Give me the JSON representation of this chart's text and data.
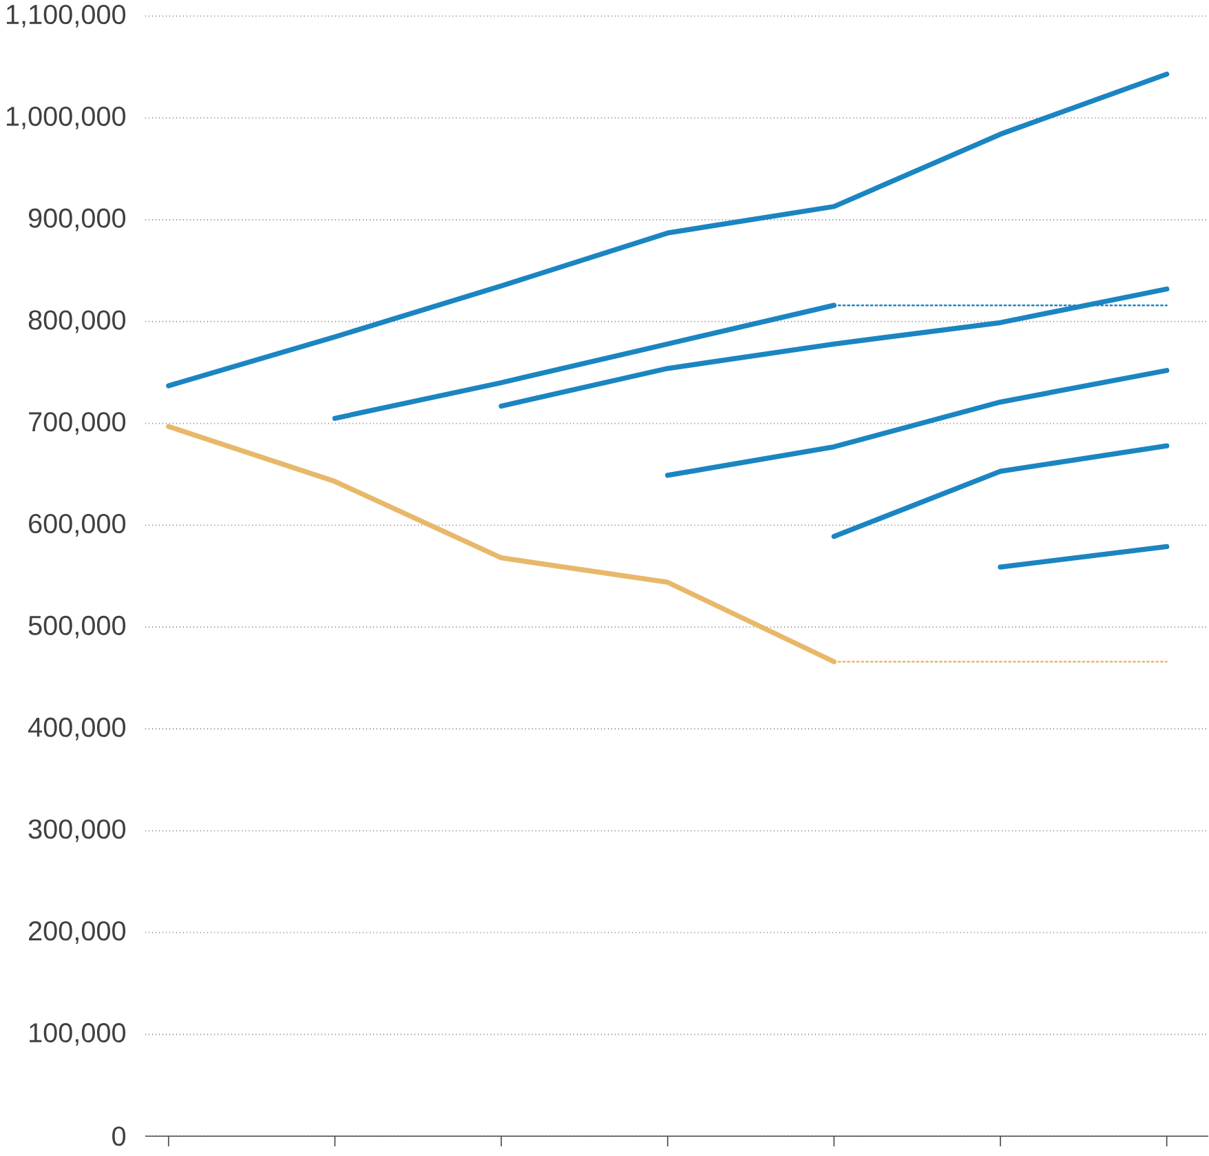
{
  "chart_data": {
    "type": "line",
    "categories": [
      null,
      null,
      null,
      null,
      null,
      null,
      null
    ],
    "ylim": [
      0,
      1100000
    ],
    "yticks": [
      {
        "value": 0,
        "label": "0"
      },
      {
        "value": 100000,
        "label": "100,000"
      },
      {
        "value": 200000,
        "label": "200,000"
      },
      {
        "value": 300000,
        "label": "300,000"
      },
      {
        "value": 400000,
        "label": "400,000"
      },
      {
        "value": 500000,
        "label": "500,000"
      },
      {
        "value": 600000,
        "label": "600,000"
      },
      {
        "value": 700000,
        "label": "700,000"
      },
      {
        "value": 800000,
        "label": "800,000"
      },
      {
        "value": 900000,
        "label": "900,000"
      },
      {
        "value": 1000000,
        "label": "1,000,000"
      },
      {
        "value": 1100000,
        "label": "1,100,000"
      }
    ],
    "grid": "y",
    "marker": "none",
    "series": [
      {
        "color": "#e8b86a",
        "values": [
          697000,
          643000,
          568000,
          544000,
          466000,
          null,
          null
        ]
      },
      {
        "color": "#e8b86a",
        "values": [
          null,
          null,
          null,
          null,
          466000,
          466000,
          466000
        ],
        "line_style": "dotted"
      },
      {
        "color": "#1b85c2",
        "values": [
          737000,
          785000,
          835000,
          887000,
          913000,
          984000,
          1043000
        ]
      },
      {
        "color": "#1b85c2",
        "values": [
          null,
          705000,
          740000,
          778000,
          816000,
          null,
          null
        ]
      },
      {
        "color": "#1b85c2",
        "values": [
          null,
          null,
          null,
          null,
          816000,
          816000,
          816000
        ],
        "line_style": "dotted"
      },
      {
        "color": "#1b85c2",
        "values": [
          null,
          null,
          717000,
          754000,
          778000,
          799000,
          832000
        ]
      },
      {
        "color": "#1b85c2",
        "values": [
          null,
          null,
          null,
          649000,
          677000,
          721000,
          752000
        ]
      },
      {
        "color": "#1b85c2",
        "values": [
          null,
          null,
          null,
          null,
          589000,
          653000,
          678000
        ]
      },
      {
        "color": "#1b85c2",
        "values": [
          null,
          null,
          null,
          null,
          null,
          559000,
          579000
        ]
      }
    ]
  }
}
